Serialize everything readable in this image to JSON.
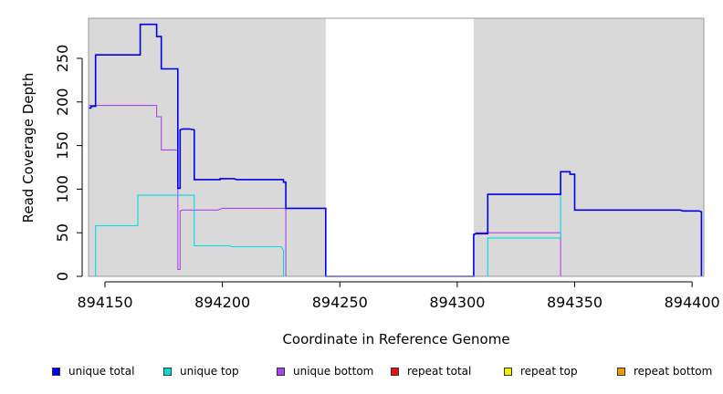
{
  "chart_data": {
    "type": "line",
    "xlabel": "Coordinate in Reference Genome",
    "ylabel": "Read Coverage Depth",
    "xlim": [
      894143,
      894405
    ],
    "ylim": [
      0,
      296
    ],
    "xticks": [
      894150,
      894200,
      894250,
      894300,
      894350,
      894400
    ],
    "yticks": [
      0,
      50,
      100,
      150,
      200,
      250
    ],
    "shaded_regions": [
      [
        894143,
        894244
      ],
      [
        894307,
        894405
      ]
    ],
    "legend_position": "bottom",
    "series": [
      {
        "name": "unique total",
        "color": "#0000ee",
        "segments": [
          [
            [
              894143,
              193
            ],
            [
              894144,
              193
            ],
            [
              894144,
              195
            ],
            [
              894146,
              195
            ],
            [
              894146,
              254
            ],
            [
              894152,
              254
            ],
            [
              894165,
              254
            ],
            [
              894165,
              289
            ],
            [
              894172,
              289
            ],
            [
              894172,
              275
            ],
            [
              894174,
              275
            ],
            [
              894174,
              238
            ],
            [
              894181,
              238
            ],
            [
              894181,
              101
            ],
            [
              894182,
              101
            ],
            [
              894182,
              168
            ],
            [
              894183,
              169
            ],
            [
              894186,
              169
            ],
            [
              894188,
              168
            ],
            [
              894188,
              111
            ],
            [
              894199,
              111
            ],
            [
              894199,
              112
            ],
            [
              894205,
              112
            ],
            [
              894206,
              111
            ],
            [
              894226,
              111
            ],
            [
              894226,
              108
            ],
            [
              894227,
              108
            ],
            [
              894227,
              78
            ],
            [
              894244,
              78
            ],
            [
              894244,
              0
            ],
            [
              894307,
              0
            ],
            [
              894307,
              48
            ],
            [
              894308,
              49
            ],
            [
              894313,
              49
            ],
            [
              894313,
              94
            ],
            [
              894344,
              94
            ],
            [
              894344,
              120
            ],
            [
              894348,
              120
            ],
            [
              894348,
              117
            ],
            [
              894350,
              117
            ],
            [
              894350,
              76
            ],
            [
              894395,
              76
            ],
            [
              894396,
              75
            ],
            [
              894403,
              75
            ],
            [
              894404,
              74
            ],
            [
              894404,
              0
            ]
          ]
        ]
      },
      {
        "name": "unique top",
        "color": "#00dddd",
        "segments": [
          [
            [
              894146,
              0
            ],
            [
              894146,
              58
            ],
            [
              894164,
              58
            ],
            [
              894164,
              93
            ],
            [
              894188,
              93
            ],
            [
              894188,
              35
            ],
            [
              894203,
              35
            ],
            [
              894204,
              34
            ],
            [
              894225,
              34
            ],
            [
              894226,
              30
            ],
            [
              894226,
              0
            ]
          ],
          [
            [
              894313,
              0
            ],
            [
              894313,
              44
            ],
            [
              894344,
              44
            ],
            [
              894344,
              120
            ]
          ]
        ]
      },
      {
        "name": "unique bottom",
        "color": "#aa44ee",
        "segments": [
          [
            [
              894143,
              196
            ],
            [
              894172,
              196
            ],
            [
              894172,
              183
            ],
            [
              894174,
              183
            ],
            [
              894174,
              145
            ],
            [
              894181,
              145
            ],
            [
              894181,
              8
            ],
            [
              894182,
              8
            ],
            [
              894182,
              75
            ],
            [
              894183,
              76
            ],
            [
              894198,
              76
            ],
            [
              894200,
              78
            ],
            [
              894227,
              78
            ],
            [
              894227,
              0
            ]
          ],
          [
            [
              894307,
              47
            ],
            [
              894308,
              50
            ],
            [
              894344,
              50
            ],
            [
              894344,
              0
            ]
          ]
        ]
      },
      {
        "name": "repeat total",
        "color": "#ee1111",
        "segments": [
          [
            [
              894344,
              0
            ],
            [
              894404,
              0
            ]
          ]
        ]
      },
      {
        "name": "repeat top",
        "color": "#eeee00",
        "segments": []
      },
      {
        "name": "repeat bottom",
        "color": "#ee9900",
        "segments": [
          [
            [
              894147,
              0
            ],
            [
              894226,
              0
            ]
          ],
          [
            [
              894313,
              0
            ],
            [
              894344,
              0
            ]
          ]
        ]
      }
    ]
  }
}
